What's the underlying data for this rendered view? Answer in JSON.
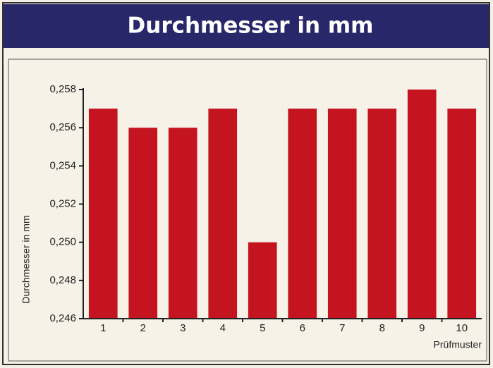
{
  "chart_data": {
    "type": "bar",
    "title": "Durchmesser in mm",
    "categories": [
      "1",
      "2",
      "3",
      "4",
      "5",
      "6",
      "7",
      "8",
      "9",
      "10"
    ],
    "values": [
      0.257,
      0.256,
      0.256,
      0.257,
      0.25,
      0.257,
      0.257,
      0.257,
      0.258,
      0.257
    ],
    "color": "#c3141f",
    "ylabel": "Durchmesser in mm",
    "xlabel": "Prüfmuster",
    "ylim": [
      0.246,
      0.258
    ],
    "yticks": [
      {
        "value": 0.246,
        "label": "0,246"
      },
      {
        "value": 0.248,
        "label": "0,248"
      },
      {
        "value": 0.25,
        "label": "0,250"
      },
      {
        "value": 0.252,
        "label": "0,252"
      },
      {
        "value": 0.254,
        "label": "0,254"
      },
      {
        "value": 0.256,
        "label": "0,256"
      },
      {
        "value": 0.258,
        "label": "0,258"
      }
    ],
    "grid": false
  }
}
